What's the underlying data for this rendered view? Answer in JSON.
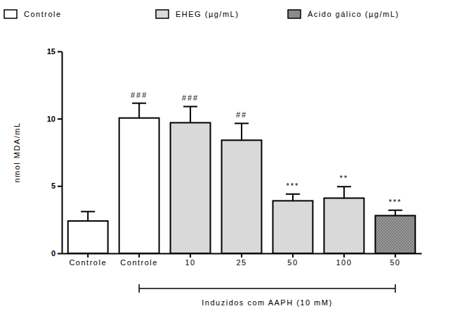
{
  "chart_data": {
    "type": "bar",
    "y_label": "nmol MDA/mL",
    "categories": [
      "Controle",
      "Controle",
      "10",
      "25",
      "50",
      "100",
      "50"
    ],
    "series": [
      {
        "name": "Controle",
        "color": "#ffffff",
        "values": [
          2.4,
          10.05,
          null,
          null,
          null,
          null,
          null
        ],
        "errors": [
          0.7,
          1.1,
          null,
          null,
          null,
          null,
          null
        ]
      },
      {
        "name": "EHEG (µg/mL)",
        "color": "#d9d9d9",
        "values": [
          null,
          null,
          9.7,
          8.4,
          3.9,
          4.1,
          null
        ],
        "errors": [
          null,
          null,
          1.2,
          1.25,
          0.5,
          0.85,
          null
        ]
      },
      {
        "name": "Ácido gálico (µg/mL)",
        "color": "#9a9a9a",
        "values": [
          null,
          null,
          null,
          null,
          null,
          null,
          2.8
        ],
        "errors": [
          null,
          null,
          null,
          null,
          null,
          null,
          0.4
        ]
      }
    ],
    "annotations": [
      null,
      "###",
      "###",
      "##",
      "***",
      "**",
      "***"
    ],
    "bracket_label": "Induzidos com AAPH (10 mM)",
    "ylim": [
      0,
      15
    ],
    "yticks": [
      0,
      5,
      10,
      15
    ],
    "grid": false,
    "legend": "top"
  }
}
